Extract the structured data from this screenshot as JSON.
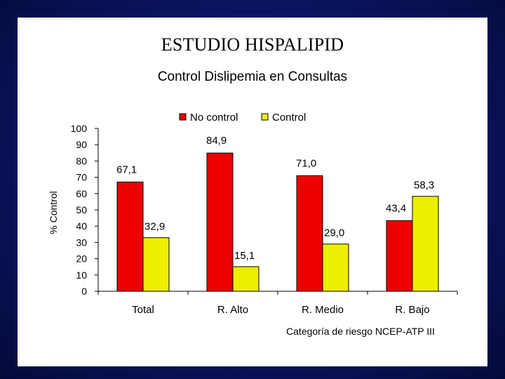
{
  "slide": {
    "title": "ESTUDIO HISPALIPID",
    "subtitle": "Control Dislipemia en Consultas"
  },
  "colors": {
    "no_control": "#ee0000",
    "control": "#eeee00",
    "background": "#0a1460"
  },
  "chart_data": {
    "type": "bar",
    "title": "Control Dislipemia en Consultas",
    "categories": [
      "Total",
      "R. Alto",
      "R. Medio",
      "R. Bajo"
    ],
    "series": [
      {
        "name": "No control",
        "values": [
          67.1,
          84.9,
          71.0,
          43.4
        ],
        "labels": [
          "67,1",
          "84,9",
          "71,0",
          "43,4"
        ]
      },
      {
        "name": "Control",
        "values": [
          32.9,
          15.1,
          29.0,
          58.3
        ],
        "labels": [
          "32,9",
          "15,1",
          "29,0",
          "58,3"
        ]
      }
    ],
    "ylabel": "% Control",
    "xlabel": "Categoría de riesgo NCEP-ATP III",
    "ylim": [
      0,
      100
    ],
    "yticks": [
      0,
      10,
      20,
      30,
      40,
      50,
      60,
      70,
      80,
      90,
      100
    ],
    "grid": false,
    "legend_position": "top-center"
  }
}
